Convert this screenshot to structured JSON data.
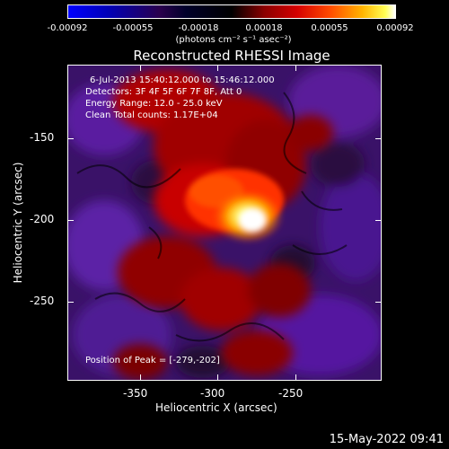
{
  "colorbar": {
    "ticks": [
      "-0.00092",
      "-0.00055",
      "-0.00018",
      "0.00018",
      "0.00055",
      "0.00092"
    ],
    "units": "(photons cm⁻² s⁻¹ asec⁻²)"
  },
  "title": "Reconstructed RHESSI Image",
  "info": {
    "time": "6-Jul-2013 15:40:12.000 to 15:46:12.000",
    "detectors": "Detectors: 3F 4F 5F 6F 7F 8F, Att 0",
    "energy": "Energy Range: 12.0 - 25.0 keV",
    "clean": "Clean    Total counts: 1.17E+04",
    "peak": "Position of Peak = [-279,-202]"
  },
  "axes": {
    "x_ticks": [
      "-350",
      "-300",
      "-250"
    ],
    "y_ticks": [
      "-150",
      "-200",
      "-250"
    ],
    "x_label": "Heliocentric X (arcsec)",
    "y_label": "Heliocentric Y (arcsec)"
  },
  "timestamp": "15-May-2022 09:41",
  "colors": {
    "background": "#000000",
    "foreground": "#ffffff",
    "negative_low": "#0000ff",
    "negative_mid": "#5a1a9a",
    "positive_mid": "#d40000",
    "positive_high": "#ffff99"
  }
}
